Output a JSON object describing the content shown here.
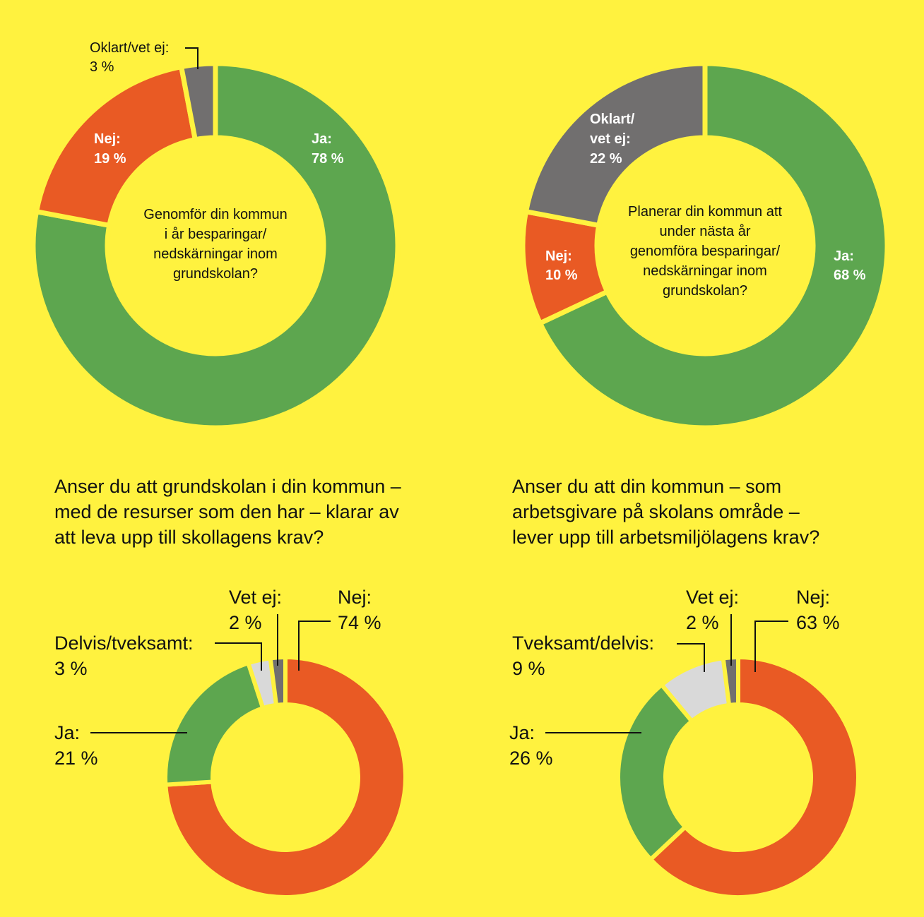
{
  "colors": {
    "background": "#fff23f",
    "green": "#5da64f",
    "orange": "#e95a24",
    "dark_gray": "#716f6f",
    "light_gray": "#d9d9d9"
  },
  "chart_data": [
    {
      "type": "pie",
      "title": "Genomför din kommun i år besparingar/ nedskärningar inom grundskolan?",
      "title_lines": [
        "Genomför din kommun",
        "i år besparingar/",
        "nedskärningar inom",
        "grundskolan?"
      ],
      "slices": [
        {
          "label": "Ja:",
          "value": 78,
          "text": "78 %",
          "color": "#5da64f"
        },
        {
          "label": "Nej:",
          "value": 19,
          "text": "19 %",
          "color": "#e95a24"
        },
        {
          "label": "Oklart/vet ej:",
          "value": 3,
          "text": "3 %",
          "color": "#716f6f"
        }
      ]
    },
    {
      "type": "pie",
      "title": "Planerar din kommun att under nästa år genomföra besparingar/ nedskärningar inom grundskolan?",
      "title_lines": [
        "Planerar din kommun att",
        "under nästa år",
        "genomföra besparingar/",
        "nedskärningar inom",
        "grundskolan?"
      ],
      "slices": [
        {
          "label": "Ja:",
          "value": 68,
          "text": "68 %",
          "color": "#5da64f"
        },
        {
          "label": "Nej:",
          "value": 10,
          "text": "10 %",
          "color": "#e95a24"
        },
        {
          "label": "Oklart/ vet ej:",
          "label_lines": [
            "Oklart/",
            "vet ej:"
          ],
          "value": 22,
          "text": "22 %",
          "color": "#716f6f"
        }
      ]
    },
    {
      "type": "pie",
      "title": "Anser du att grundskolan i din kommun – med de resurser som den har – klarar av att leva upp till skollagens krav?",
      "title_lines": [
        "Anser du att grundskolan i din kommun –",
        "med de resurser som den har – klarar av",
        "att leva upp till skollagens krav?"
      ],
      "slices": [
        {
          "label": "Nej:",
          "value": 74,
          "text": "74 %",
          "color": "#e95a24"
        },
        {
          "label": "Ja:",
          "value": 21,
          "text": "21 %",
          "color": "#5da64f"
        },
        {
          "label": "Delvis/tveksamt:",
          "value": 3,
          "text": "3 %",
          "color": "#d9d9d9"
        },
        {
          "label": "Vet ej:",
          "value": 2,
          "text": "2 %",
          "color": "#716f6f"
        }
      ]
    },
    {
      "type": "pie",
      "title": "Anser du att din kommun – som arbetsgivare på skolans område – lever upp till arbetsmiljölagens krav?",
      "title_lines": [
        "Anser du att din kommun – som",
        "arbetsgivare på skolans område –",
        "lever upp till arbetsmiljölagens krav?"
      ],
      "slices": [
        {
          "label": "Nej:",
          "value": 63,
          "text": "63 %",
          "color": "#e95a24"
        },
        {
          "label": "Ja:",
          "value": 26,
          "text": "26 %",
          "color": "#5da64f"
        },
        {
          "label": "Tveksamt/delvis:",
          "value": 9,
          "text": "9 %",
          "color": "#d9d9d9"
        },
        {
          "label": "Vet ej:",
          "value": 2,
          "text": "2 %",
          "color": "#716f6f"
        }
      ]
    }
  ]
}
